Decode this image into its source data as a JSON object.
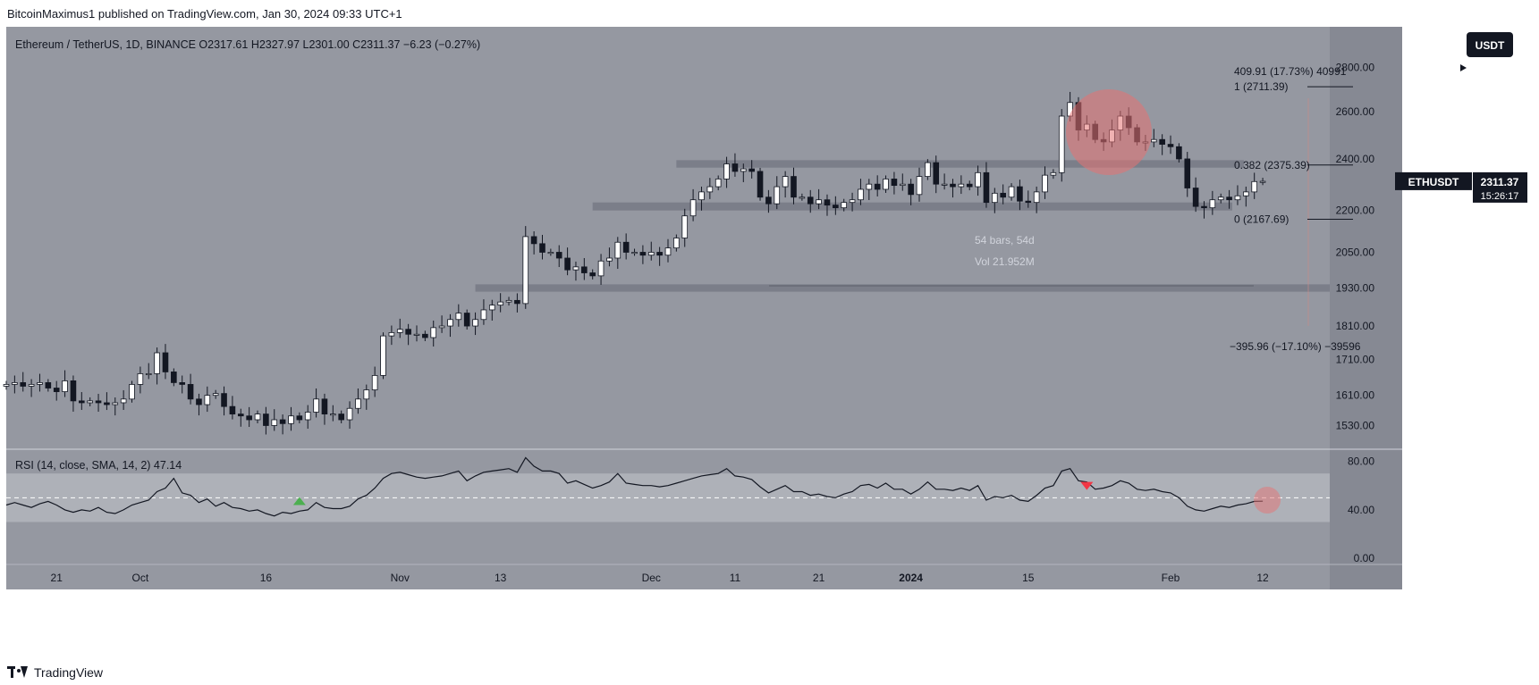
{
  "header": {
    "publisher_line": "BitcoinMaximus1 published on TradingView.com, Jan 30, 2024 09:33 UTC+1"
  },
  "footer": {
    "brand": "TradingView"
  },
  "legend": {
    "symbol": "Ethereum / TetherUS, 1D, BINANCE",
    "o_label": "O",
    "o_value": "2317.61",
    "h_label": "H",
    "h_value": "2327.97",
    "l_label": "L",
    "l_value": "2301.00",
    "c_label": "C",
    "c_value": "2311.37",
    "change": "−6.23 (−0.27%)"
  },
  "currency_badge": "USDT",
  "price_tag": {
    "symbol": "ETHUSDT",
    "price": "2311.37",
    "countdown": "15:26:17"
  },
  "colors": {
    "chart_bg": "#9598a1",
    "scale_bg": "#868993",
    "candle_up": "#ffffff",
    "candle_down": "#131722",
    "zone": "#787b86",
    "rsi_band": "#b3b5bc",
    "rsi_line": "#131722",
    "highlight_circle": "#e57373",
    "arrow_up": "#4caf50",
    "arrow_down": "#f23645"
  },
  "chart_data": [
    {
      "type": "candlestick",
      "title": "Ethereum / TetherUS, 1D, BINANCE",
      "scale": "log",
      "ylim": [
        1470,
        3000
      ],
      "y_ticks": [
        "2800.00",
        "2600.00",
        "2400.00",
        "2200.00",
        "2050.00",
        "1930.00",
        "1810.00",
        "1710.00",
        "1610.00",
        "1530.00"
      ],
      "x_ticks": [
        {
          "label": "21",
          "date": "2023-09-21"
        },
        {
          "label": "Oct",
          "date": "2023-10-01"
        },
        {
          "label": "16",
          "date": "2023-10-16"
        },
        {
          "label": "Nov",
          "date": "2023-11-01"
        },
        {
          "label": "13",
          "date": "2023-11-13"
        },
        {
          "label": "Dec",
          "date": "2023-12-01"
        },
        {
          "label": "11",
          "date": "2023-12-11"
        },
        {
          "label": "21",
          "date": "2023-12-21"
        },
        {
          "label": "2024",
          "date": "2024-01-01"
        },
        {
          "label": "15",
          "date": "2024-01-15"
        },
        {
          "label": "Feb",
          "date": "2024-02-01"
        },
        {
          "label": "12",
          "date": "2024-02-12"
        }
      ],
      "x_range": [
        "2023-09-15",
        "2024-02-20"
      ],
      "first_date": "2023-09-15",
      "last_date": "2024-01-30",
      "closes": [
        1640,
        1645,
        1635,
        1640,
        1645,
        1630,
        1620,
        1650,
        1595,
        1590,
        1595,
        1590,
        1585,
        1590,
        1600,
        1640,
        1670,
        1670,
        1730,
        1675,
        1645,
        1640,
        1600,
        1585,
        1610,
        1615,
        1580,
        1560,
        1555,
        1545,
        1560,
        1530,
        1545,
        1535,
        1555,
        1545,
        1565,
        1600,
        1560,
        1560,
        1545,
        1575,
        1600,
        1625,
        1665,
        1780,
        1790,
        1800,
        1785,
        1785,
        1775,
        1805,
        1810,
        1830,
        1850,
        1810,
        1830,
        1860,
        1875,
        1885,
        1890,
        1880,
        2105,
        2080,
        2050,
        2050,
        2030,
        1990,
        2000,
        1980,
        1970,
        2020,
        2030,
        2085,
        2050,
        2050,
        2040,
        2050,
        2040,
        2065,
        2100,
        2180,
        2240,
        2270,
        2290,
        2320,
        2380,
        2350,
        2360,
        2350,
        2250,
        2225,
        2290,
        2330,
        2250,
        2250,
        2225,
        2240,
        2220,
        2210,
        2230,
        2240,
        2280,
        2300,
        2280,
        2320,
        2295,
        2300,
        2260,
        2330,
        2385,
        2300,
        2300,
        2290,
        2300,
        2290,
        2345,
        2230,
        2265,
        2250,
        2290,
        2235,
        2230,
        2270,
        2335,
        2345,
        2580,
        2640,
        2520,
        2545,
        2480,
        2470,
        2520,
        2580,
        2530,
        2470,
        2470,
        2480,
        2460,
        2450,
        2400,
        2285,
        2215,
        2210,
        2240,
        2250,
        2240,
        2255,
        2270,
        2310,
        2311
      ],
      "annotations": {
        "fib_levels": [
          {
            "label": "1 (2711.39)",
            "price": 2711.39
          },
          {
            "label": "0.382 (2375.39)",
            "price": 2375.39
          },
          {
            "label": "0 (2167.69)",
            "price": 2167.69
          }
        ],
        "measure_up": "409.91 (17.73%) 40991",
        "measure_down": "−395.96 (−17.10%) −39596",
        "range_info_1": "54 bars, 54d",
        "range_info_2": "Vol 21.952M",
        "zones": [
          {
            "from": 2365,
            "to": 2395,
            "start": "2023-12-04"
          },
          {
            "from": 2200,
            "to": 2230,
            "start": "2023-11-24"
          },
          {
            "from": 1918,
            "to": 1942,
            "start": "2023-11-10"
          }
        ]
      }
    },
    {
      "type": "line",
      "title": "RSI (14, close, SMA, 14, 2)",
      "current": "47.14",
      "ylim": [
        -5,
        90
      ],
      "y_ticks": [
        "80.00",
        "40.00",
        "0.00"
      ],
      "band": [
        30,
        70
      ],
      "midline": 50,
      "values": [
        44,
        46,
        44,
        42,
        45,
        47,
        44,
        40,
        38,
        40,
        39,
        42,
        38,
        37,
        40,
        44,
        46,
        48,
        55,
        58,
        66,
        54,
        52,
        46,
        49,
        43,
        46,
        42,
        41,
        39,
        40,
        37,
        35,
        38,
        37,
        39,
        40,
        46,
        42,
        41,
        41,
        43,
        49,
        52,
        58,
        66,
        70,
        71,
        69,
        67,
        66,
        67,
        68,
        70,
        72,
        64,
        68,
        71,
        72,
        73,
        74,
        71,
        83,
        76,
        72,
        72,
        70,
        62,
        64,
        61,
        58,
        60,
        63,
        70,
        62,
        61,
        60,
        60,
        59,
        60,
        62,
        64,
        66,
        68,
        69,
        70,
        74,
        68,
        67,
        65,
        59,
        54,
        57,
        60,
        55,
        55,
        52,
        53,
        51,
        50,
        53,
        55,
        60,
        61,
        58,
        62,
        57,
        57,
        53,
        57,
        63,
        57,
        57,
        56,
        58,
        56,
        60,
        48,
        51,
        50,
        52,
        48,
        47,
        52,
        58,
        60,
        72,
        74,
        64,
        63,
        57,
        58,
        60,
        64,
        62,
        57,
        56,
        57,
        55,
        54,
        50,
        43,
        40,
        39,
        41,
        43,
        42,
        44,
        45,
        47,
        47.14
      ],
      "signals": [
        {
          "type": "up",
          "date": "2023-10-20"
        },
        {
          "type": "down",
          "date": "2024-01-22"
        }
      ]
    }
  ]
}
